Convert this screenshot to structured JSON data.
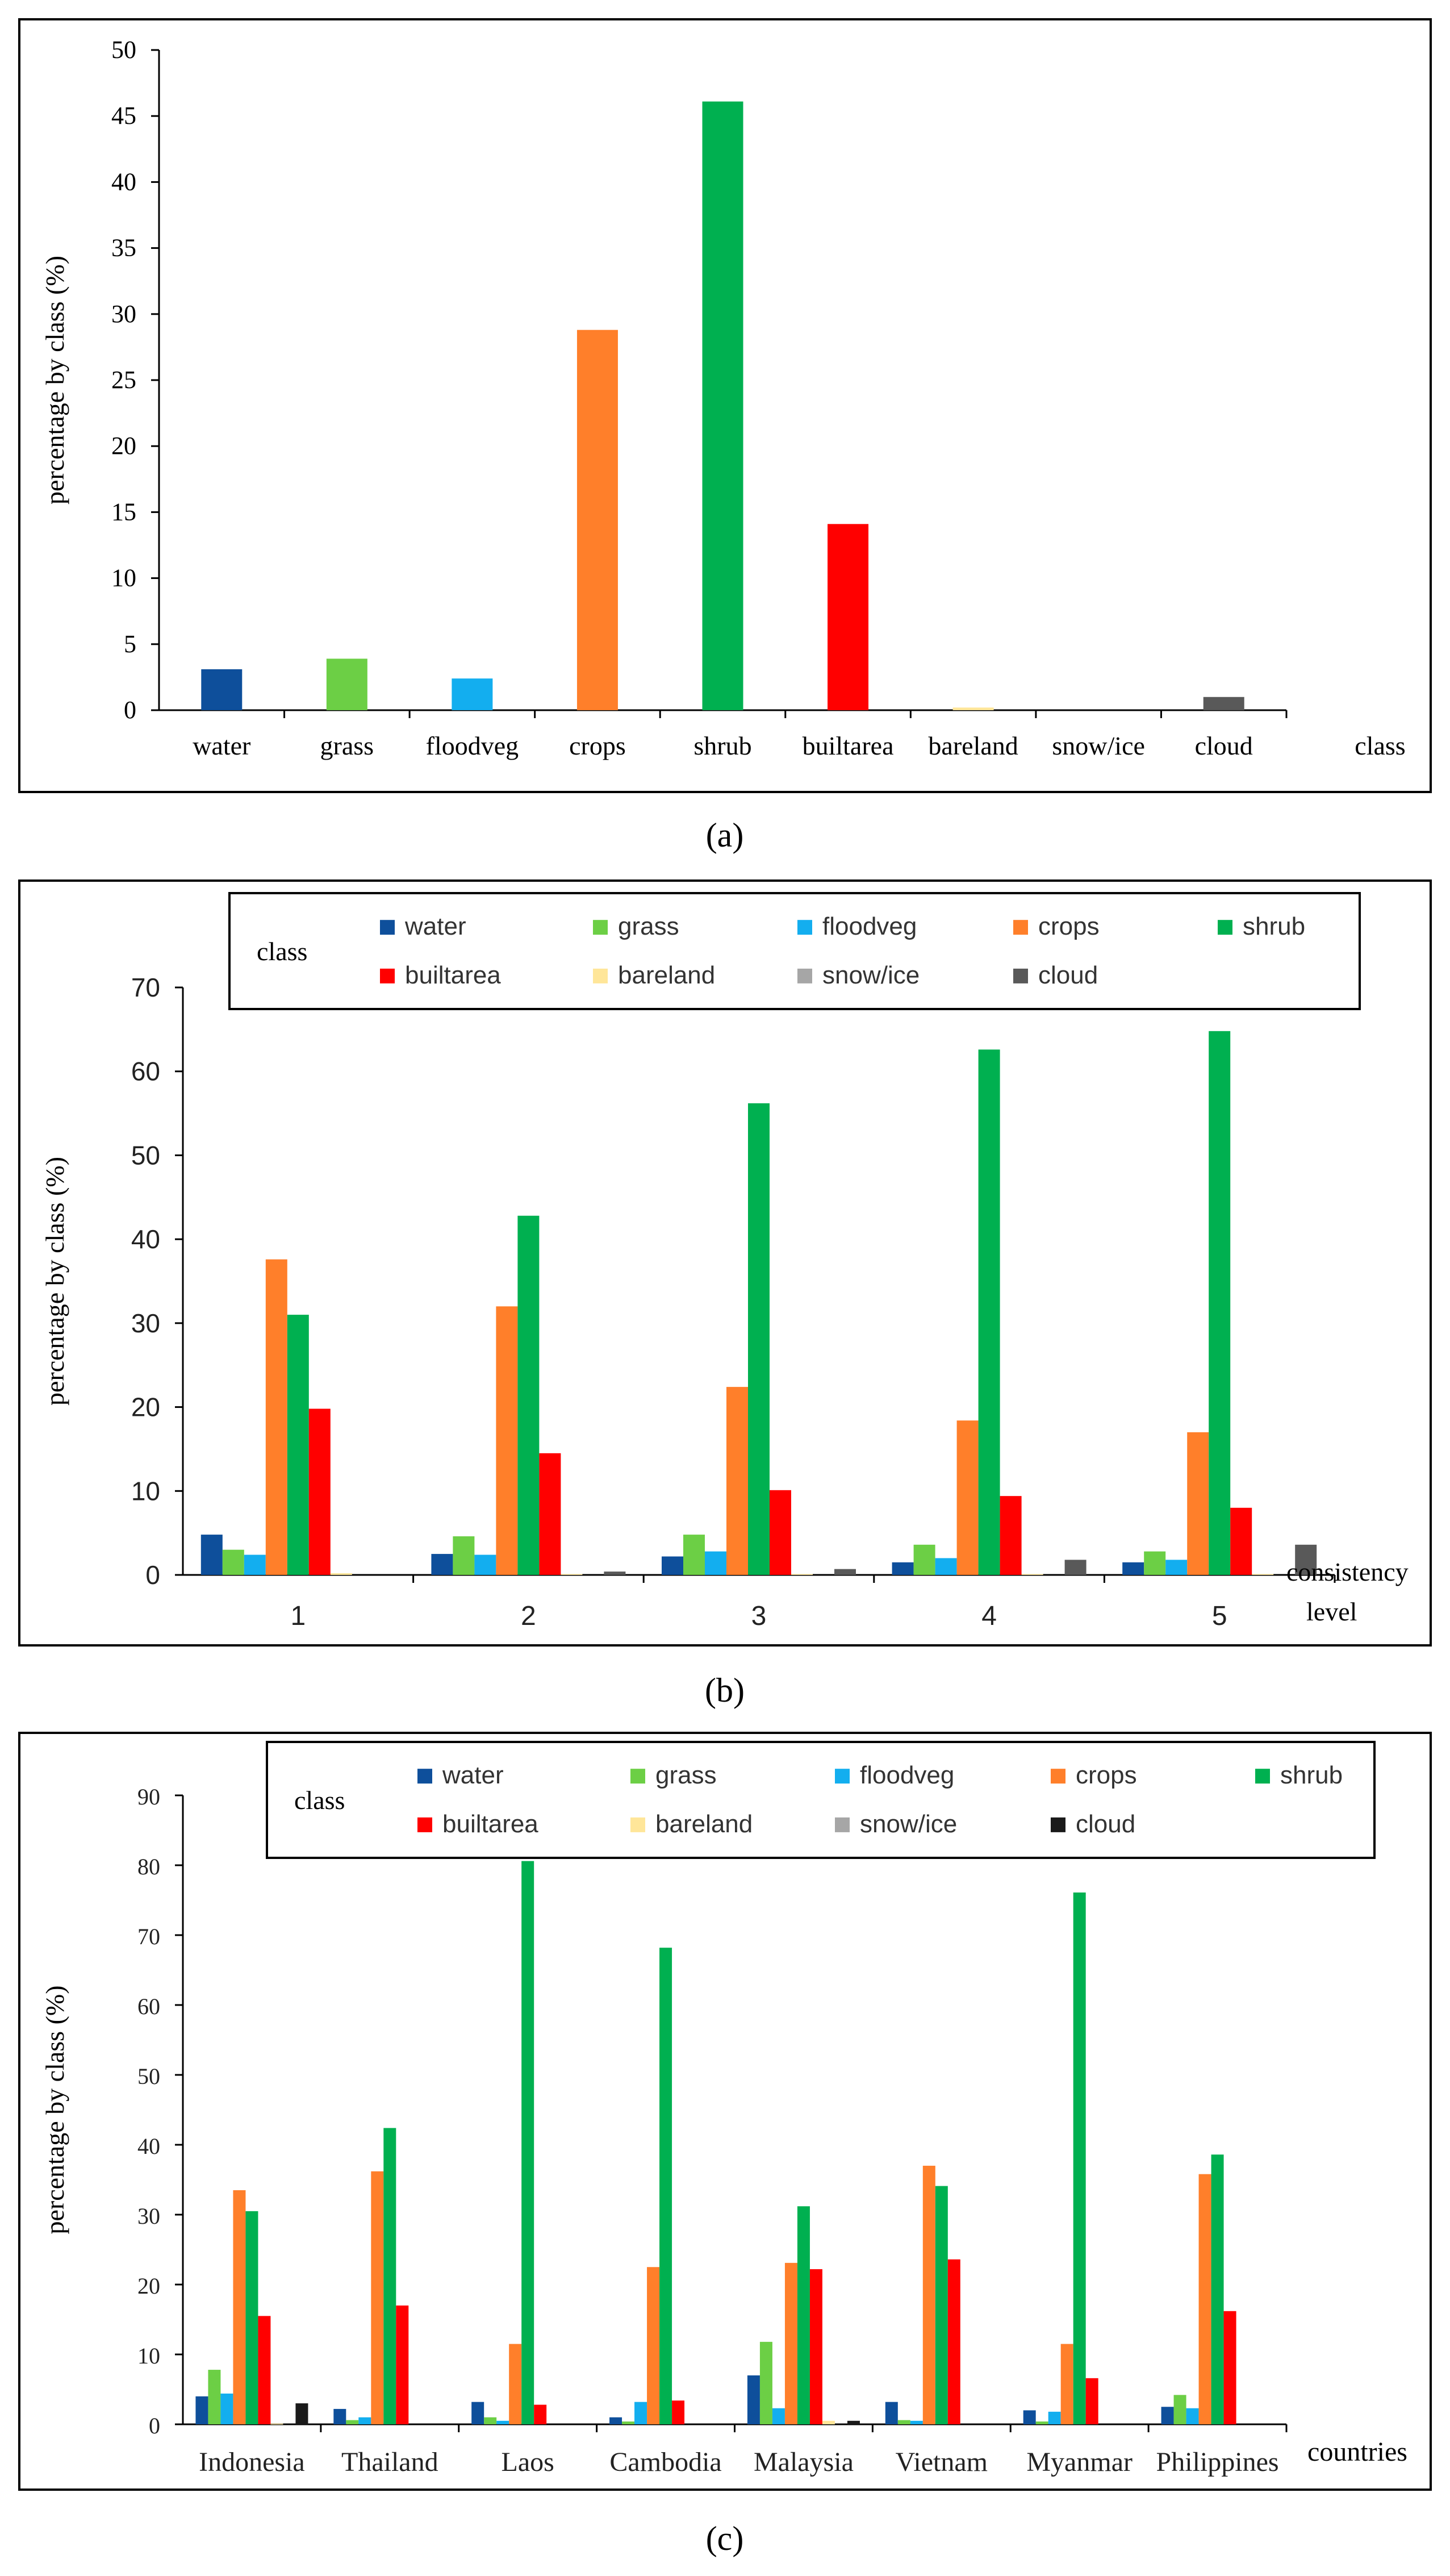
{
  "colors": {
    "water": "#0E4F9B",
    "grass": "#6CCF45",
    "floodveg": "#13AEEF",
    "crops": "#FF7F2A",
    "shrub": "#00B050",
    "builtarea": "#FF0000",
    "bareland": "#FFE699",
    "snowice": "#A6A6A6",
    "cloud_a": "#595959",
    "cloud_b": "#595959",
    "cloud_c": "#1A1A1A"
  },
  "chart_data": [
    {
      "panel": "(a)",
      "type": "bar",
      "title": "",
      "xlabel": "class",
      "ylabel": "percentage by class (%)",
      "ylim": [
        0,
        50
      ],
      "yticks": [
        "0",
        "5",
        "10",
        "15",
        "20",
        "25",
        "30",
        "35",
        "40",
        "45",
        "50"
      ],
      "categories": [
        "water",
        "grass",
        "floodveg",
        "crops",
        "shrub",
        "builtarea",
        "bareland",
        "snow/ice",
        "cloud"
      ],
      "values": [
        3.1,
        3.9,
        2.4,
        28.8,
        46.1,
        14.1,
        0.2,
        0.0,
        1.0
      ]
    },
    {
      "panel": "(b)",
      "type": "bar",
      "title": "",
      "xlabel": "consistency level",
      "xlabel_lines": [
        "consistency",
        "level"
      ],
      "ylabel": "percentage by class (%)",
      "ylim": [
        0,
        70
      ],
      "yticks": [
        "0",
        "10",
        "20",
        "30",
        "40",
        "50",
        "60",
        "70"
      ],
      "legend_title": "class",
      "legend": [
        "water",
        "grass",
        "floodveg",
        "crops",
        "shrub",
        "builtarea",
        "bareland",
        "snow/ice",
        "cloud"
      ],
      "categories": [
        "1",
        "2",
        "3",
        "4",
        "5"
      ],
      "series": [
        {
          "name": "water",
          "values": [
            4.8,
            2.5,
            2.2,
            1.5,
            1.5
          ]
        },
        {
          "name": "grass",
          "values": [
            3.0,
            4.6,
            4.8,
            3.6,
            2.8
          ]
        },
        {
          "name": "floodveg",
          "values": [
            2.4,
            2.4,
            2.8,
            2.0,
            1.8
          ]
        },
        {
          "name": "crops",
          "values": [
            37.6,
            32.0,
            22.4,
            18.4,
            17.0
          ]
        },
        {
          "name": "shrub",
          "values": [
            31.0,
            42.8,
            56.2,
            62.6,
            64.8
          ]
        },
        {
          "name": "builtarea",
          "values": [
            19.8,
            14.5,
            10.1,
            9.4,
            8.0
          ]
        },
        {
          "name": "bareland",
          "values": [
            0.2,
            0.1,
            0.1,
            0.1,
            0.1
          ]
        },
        {
          "name": "snow/ice",
          "values": [
            0.0,
            0.0,
            0.0,
            0.0,
            0.0
          ]
        },
        {
          "name": "cloud",
          "values": [
            0.0,
            0.4,
            0.7,
            1.8,
            3.6
          ]
        }
      ]
    },
    {
      "panel": "(c)",
      "type": "bar",
      "title": "",
      "xlabel": "countries",
      "ylabel": "percentage by class (%)",
      "ylim": [
        0,
        90
      ],
      "yticks": [
        "0",
        "10",
        "20",
        "30",
        "40",
        "50",
        "60",
        "70",
        "80",
        "90"
      ],
      "legend_title": "class",
      "legend": [
        "water",
        "grass",
        "floodveg",
        "crops",
        "shrub",
        "builtarea",
        "bareland",
        "snow/ice",
        "cloud"
      ],
      "categories": [
        "Indonesia",
        "Thailand",
        "Laos",
        "Cambodia",
        "Malaysia",
        "Vietnam",
        "Myanmar",
        "Philippines"
      ],
      "series": [
        {
          "name": "water",
          "values": [
            4.0,
            2.2,
            3.2,
            1.0,
            7.0,
            3.2,
            2.0,
            2.5
          ]
        },
        {
          "name": "grass",
          "values": [
            7.8,
            0.6,
            1.0,
            0.4,
            11.8,
            0.6,
            0.4,
            4.2
          ]
        },
        {
          "name": "floodveg",
          "values": [
            4.4,
            1.0,
            0.5,
            3.2,
            2.3,
            0.5,
            1.8,
            2.3
          ]
        },
        {
          "name": "crops",
          "values": [
            33.5,
            36.2,
            11.5,
            22.5,
            23.1,
            37.0,
            11.5,
            35.8
          ]
        },
        {
          "name": "shrub",
          "values": [
            30.5,
            42.4,
            80.6,
            68.2,
            31.2,
            34.1,
            76.1,
            38.6
          ]
        },
        {
          "name": "builtarea",
          "values": [
            15.5,
            17.0,
            2.8,
            3.4,
            22.2,
            23.6,
            6.6,
            16.2
          ]
        },
        {
          "name": "bareland",
          "values": [
            0.1,
            0.0,
            0.0,
            0.0,
            0.5,
            0.0,
            0.0,
            0.0
          ]
        },
        {
          "name": "snow/ice",
          "values": [
            0.0,
            0.0,
            0.0,
            0.0,
            0.0,
            0.0,
            0.0,
            0.0
          ]
        },
        {
          "name": "cloud",
          "values": [
            3.0,
            0.0,
            0.0,
            0.0,
            0.5,
            0.0,
            0.0,
            0.0
          ]
        }
      ]
    }
  ],
  "captions": {
    "a": "(a)",
    "b": "(b)",
    "c": "(c)"
  }
}
